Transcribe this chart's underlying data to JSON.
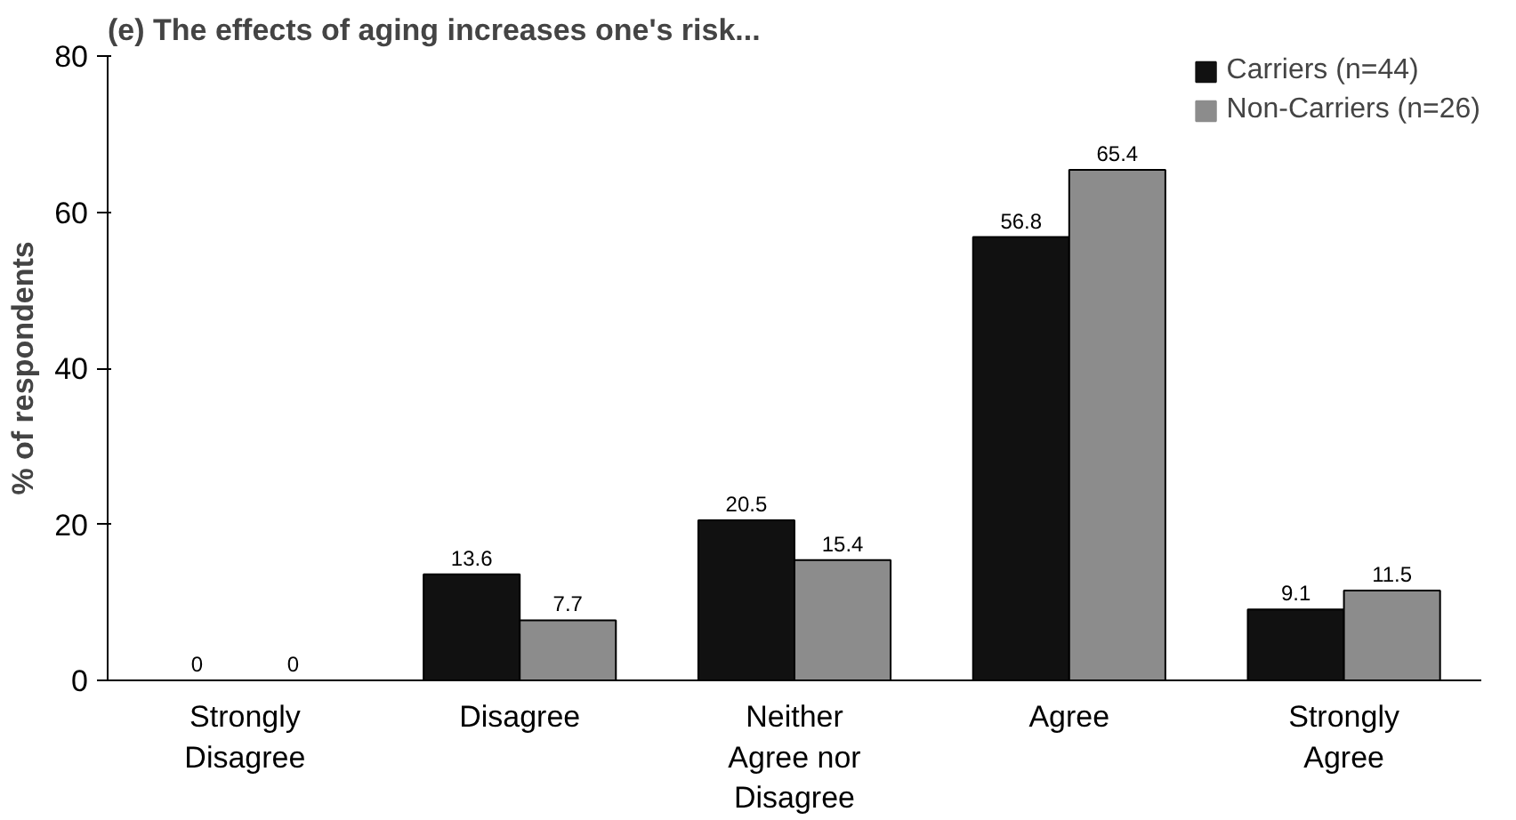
{
  "chart_data": {
    "type": "bar",
    "title": "(e) The effects of aging increases one's risk...",
    "ylabel": "% of respondents",
    "categories": [
      "Strongly Disagree",
      "Disagree",
      "Neither Agree nor Disagree",
      "Agree",
      "Strongly Agree"
    ],
    "series": [
      {
        "name": "Carriers (n=44)",
        "color": "#111111",
        "values": [
          0,
          13.6,
          20.5,
          56.8,
          9.1
        ]
      },
      {
        "name": "Non-Carriers (n=26)",
        "color": "#8c8c8c",
        "values": [
          0,
          7.7,
          15.4,
          65.4,
          11.5
        ]
      }
    ],
    "ylim": [
      0,
      80
    ],
    "yticks": [
      0,
      20,
      40,
      60,
      80
    ],
    "grid": false,
    "legend": "top right",
    "data_labels": true
  }
}
